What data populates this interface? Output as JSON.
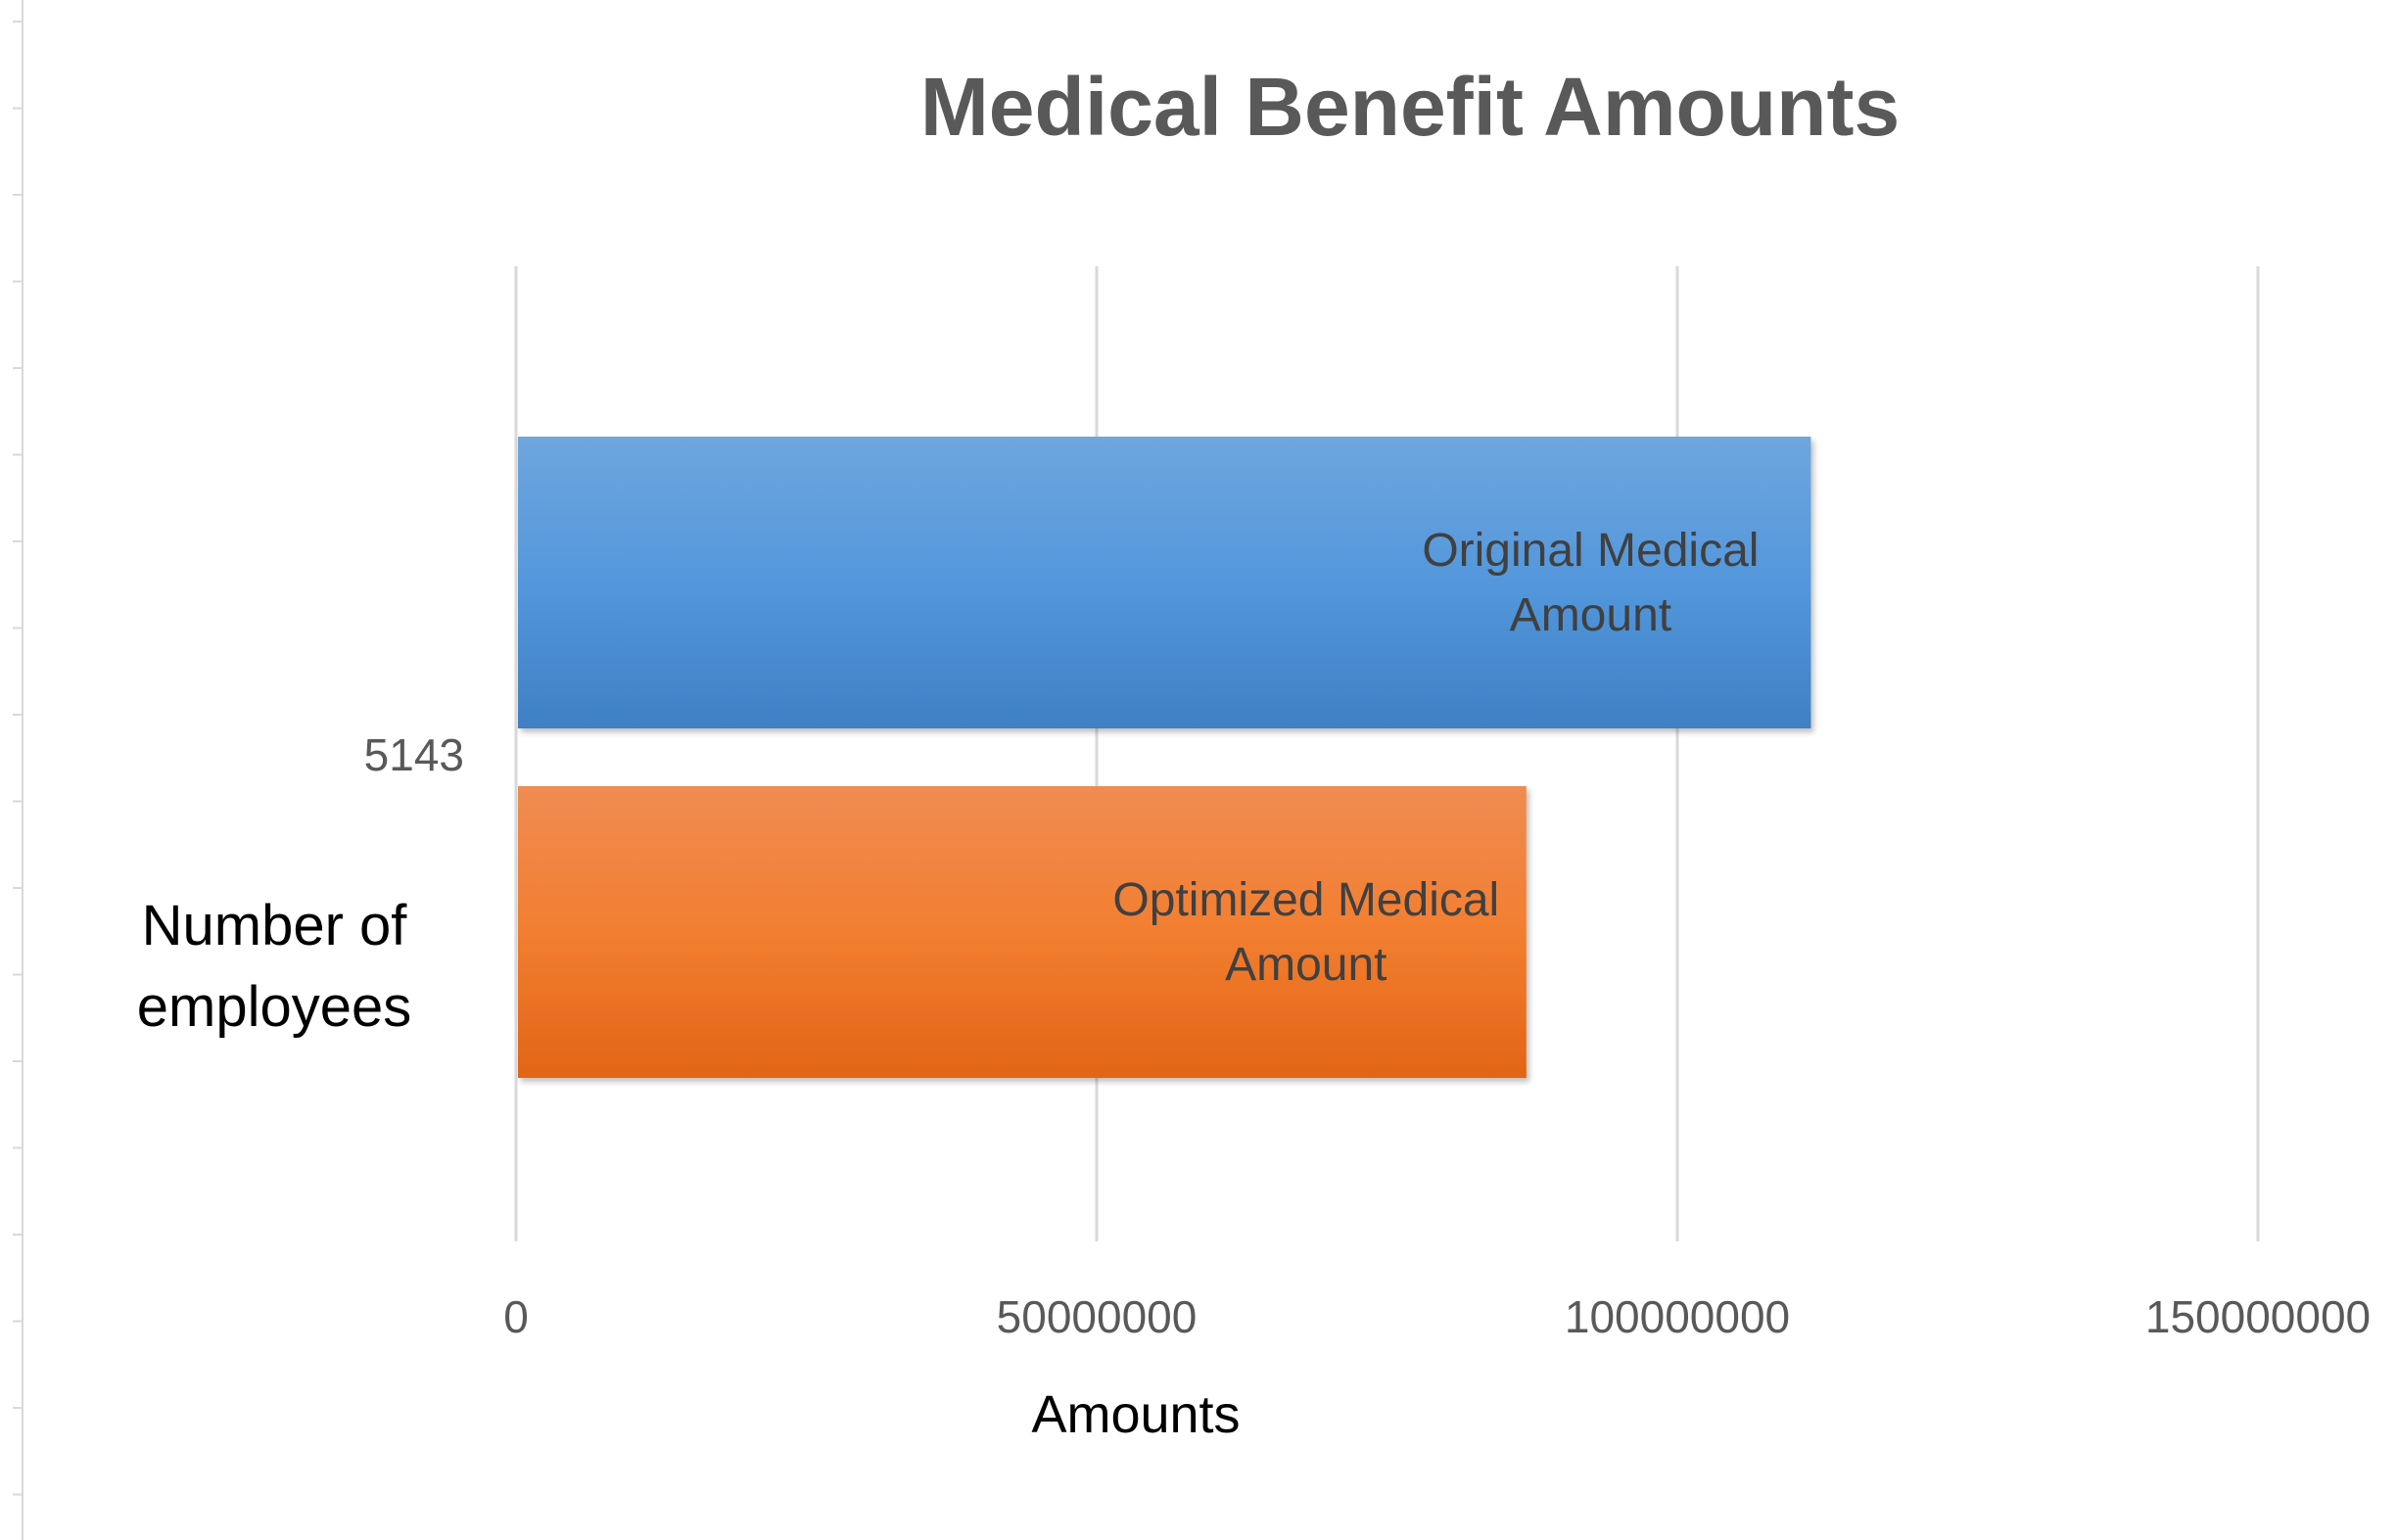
{
  "chart_data": {
    "type": "bar",
    "orientation": "horizontal",
    "title": "Medical Benefit Amounts",
    "xlabel": "Amounts",
    "ylabel": "Number of employees",
    "categories": [
      "5143"
    ],
    "xlim": [
      0,
      150000000
    ],
    "x_ticks": [
      "0",
      "50000000",
      "100000000",
      "150000000"
    ],
    "grid": true,
    "legend": "none",
    "series": [
      {
        "name": "Original Medical Amount",
        "values": [
          111500000
        ],
        "color": "#4F8FD6",
        "label_lines": [
          "Original Medical",
          "Amount"
        ]
      },
      {
        "name": "Optimized Medical Amount",
        "values": [
          87000000
        ],
        "color": "#EF7A2E",
        "label_lines": [
          "Optimized Medical",
          "Amount"
        ]
      }
    ]
  }
}
